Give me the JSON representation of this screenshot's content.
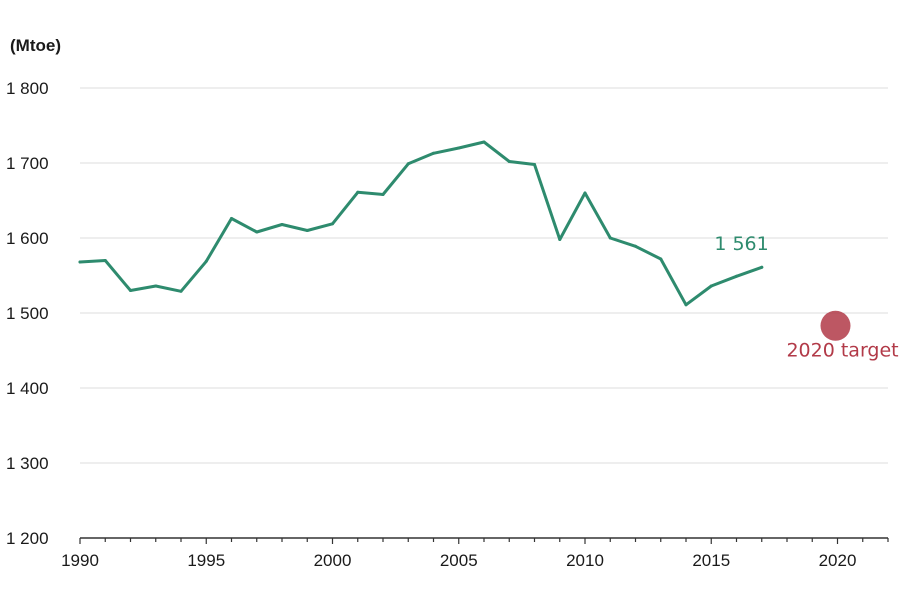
{
  "chart_data": {
    "type": "line",
    "ylabel": "(Mtoe)",
    "ylim": [
      1200,
      1800
    ],
    "yticks": [
      1200,
      1300,
      1400,
      1500,
      1600,
      1700,
      1800
    ],
    "ytick_labels": [
      "1 200",
      "1 300",
      "1 400",
      "1 500",
      "1 600",
      "1 700",
      "1 800"
    ],
    "xlim": [
      1990,
      2022
    ],
    "xticks": [
      1990,
      1995,
      2000,
      2005,
      2010,
      2015,
      2020
    ],
    "xtick_labels": [
      "1990",
      "1995",
      "2000",
      "2005",
      "2010",
      "2015",
      "2020"
    ],
    "grid": true,
    "series": [
      {
        "color": "#2e8b6e",
        "x": [
          1990,
          1991,
          1992,
          1993,
          1994,
          1995,
          1996,
          1997,
          1998,
          1999,
          2000,
          2001,
          2002,
          2003,
          2004,
          2005,
          2006,
          2007,
          2008,
          2009,
          2010,
          2011,
          2012,
          2013,
          2014,
          2015,
          2016,
          2017
        ],
        "y": [
          1568,
          1570,
          1530,
          1536,
          1529,
          1569,
          1626,
          1608,
          1618,
          1610,
          1619,
          1661,
          1658,
          1699,
          1713,
          1720,
          1728,
          1702,
          1698,
          1598,
          1660,
          1600,
          1589,
          1572,
          1511,
          1536,
          1549,
          1561
        ]
      }
    ],
    "annotations": [
      {
        "text": "1 561",
        "x": 2016.2,
        "y": 1584,
        "color": "#2e8b6e"
      },
      {
        "text": "2020 target",
        "x": 2020.2,
        "y": 1442,
        "color": "#b23a48"
      }
    ],
    "target_point": {
      "x": 2020,
      "y": 1483,
      "color": "#b23a48"
    }
  }
}
